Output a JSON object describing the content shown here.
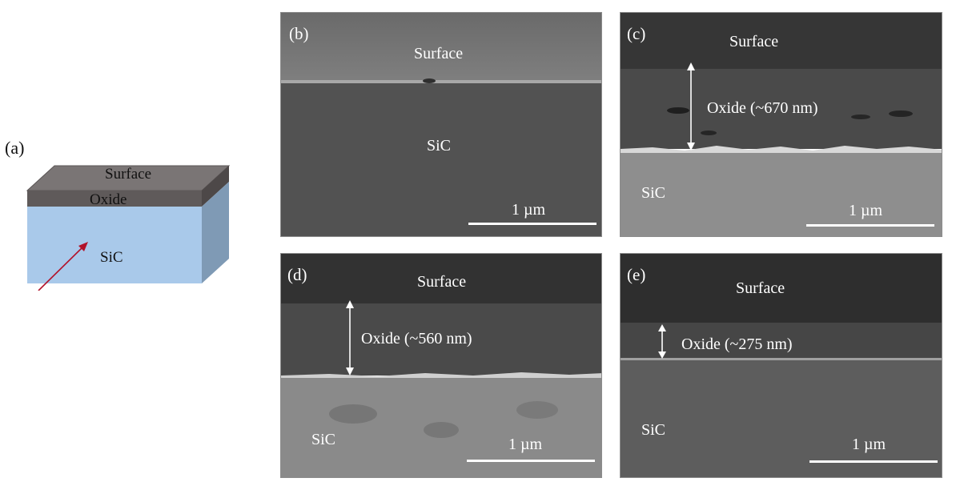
{
  "figure": {
    "diagram": {
      "label": "(a)",
      "surface": "Surface",
      "oxide": "Oxide",
      "sic": "SiC",
      "colors": {
        "top": "#7a7575",
        "oxide": "#5f5a5a",
        "sic_front": "#a9c9ea",
        "sic_side": "#7f9ab5",
        "arrow": "#b2122a"
      }
    },
    "panels": {
      "b": {
        "label": "(b)",
        "surface": "Surface",
        "sic": "SiC",
        "scale": "1 µm"
      },
      "c": {
        "label": "(c)",
        "surface": "Surface",
        "oxide": "Oxide (~670 nm)",
        "sic": "SiC",
        "scale": "1 µm"
      },
      "d": {
        "label": "(d)",
        "surface": "Surface",
        "oxide": "Oxide (~560 nm)",
        "sic": "SiC",
        "scale": "1 µm"
      },
      "e": {
        "label": "(e)",
        "surface": "Surface",
        "oxide": "Oxide (~275 nm)",
        "sic": "SiC",
        "scale": "1 µm"
      }
    }
  }
}
